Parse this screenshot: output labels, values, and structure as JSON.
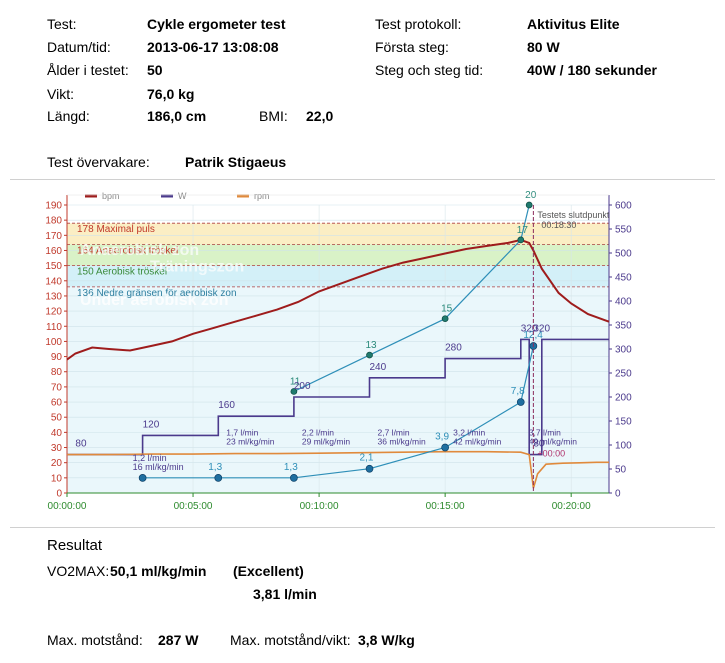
{
  "info": {
    "test_label": "Test:",
    "test_value": "Cykle ergometer test",
    "datum_label": "Datum/tid:",
    "datum_value": "2013-06-17  13:08:08",
    "alder_label": "Ålder i testet:",
    "alder_value": "50",
    "vikt_label": "Vikt:",
    "vikt_value": "76,0 kg",
    "langd_label": "Längd:",
    "langd_value": "186,0 cm",
    "bmi_label": "BMI:",
    "bmi_value": "22,0",
    "protokoll_label": "Test protokoll:",
    "protokoll_value": "Aktivitus Elite",
    "forsta_label": "Första steg:",
    "forsta_value": "80 W",
    "steg_label": "Steg och steg tid:",
    "steg_value": "40W / 180 sekunder",
    "overvakare_label": "Test övervakare:",
    "overvakare_value": "Patrik Stigaeus"
  },
  "chart_data": {
    "type": "line",
    "title": "",
    "legend": [
      "bpm",
      "W",
      "rpm"
    ],
    "legend_position": "top-left",
    "x_ticks": [
      "00:00:00",
      "00:05:00",
      "00:10:00",
      "00:15:00",
      "00:20:00"
    ],
    "x_range_seconds": [
      0,
      1290
    ],
    "y_left_range": [
      0,
      190
    ],
    "y_left_ticks": [
      0,
      10,
      20,
      30,
      40,
      50,
      60,
      70,
      80,
      90,
      100,
      110,
      120,
      130,
      140,
      150,
      160,
      170,
      180,
      190
    ],
    "y_right_range": [
      0,
      600
    ],
    "y_right_ticks": [
      0,
      50,
      100,
      150,
      200,
      250,
      300,
      350,
      400,
      450,
      500,
      550,
      600
    ],
    "zones": [
      {
        "label": "178 Maximal puls",
        "value": 178,
        "color": "#fbe6d8"
      },
      {
        "label": "164 Anaerobisk tröskel",
        "value": 164,
        "color": "#fbeec4"
      },
      {
        "label": "150 Aerobisk tröskel",
        "value": 150,
        "color": "#d9f2c7"
      },
      {
        "label": "136 Nedre gränsen för aerobisk zon",
        "value": 136,
        "color": "#d3f0f8"
      }
    ],
    "zone_names": [
      "Anaerobisk zon",
      "Träningszon",
      "Under aerobisk zon"
    ],
    "end_annotation": [
      "Testets slutdpunkt",
      "00:18:30"
    ],
    "end_time_seconds": 1110,
    "plus_label": "+00:00",
    "series": [
      {
        "name": "bpm",
        "axis": "left",
        "color": "#9e1c1c",
        "x": [
          0,
          20,
          60,
          100,
          150,
          200,
          250,
          300,
          350,
          400,
          450,
          500,
          550,
          600,
          650,
          700,
          750,
          800,
          850,
          900,
          950,
          1000,
          1050,
          1080,
          1100,
          1110,
          1130,
          1150,
          1170,
          1200,
          1240,
          1280,
          1290
        ],
        "y": [
          88,
          92,
          96,
          95,
          94,
          97,
          100,
          105,
          109,
          113,
          117,
          121,
          126,
          133,
          138,
          143,
          148,
          152,
          155,
          158,
          161,
          163,
          165,
          167,
          165,
          160,
          148,
          140,
          132,
          125,
          118,
          114,
          113
        ]
      },
      {
        "name": "W",
        "axis": "right",
        "color": "#4b3a8c",
        "x": [
          0,
          180,
          180,
          360,
          360,
          540,
          540,
          720,
          720,
          900,
          900,
          1080,
          1080,
          1100,
          1100,
          1130,
          1130,
          1290
        ],
        "y": [
          80,
          80,
          120,
          120,
          160,
          160,
          200,
          200,
          240,
          240,
          280,
          280,
          320,
          320,
          80,
          80,
          320,
          320
        ]
      },
      {
        "name": "rpm",
        "axis": "right",
        "color": "#e08a3c",
        "x": [
          0,
          100,
          200,
          300,
          400,
          500,
          600,
          700,
          800,
          900,
          1000,
          1080,
          1100,
          1110,
          1120,
          1140,
          1180,
          1220,
          1260,
          1290
        ],
        "y": [
          80,
          80,
          81,
          81,
          82,
          82,
          83,
          84,
          85,
          86,
          86,
          85,
          80,
          10,
          40,
          60,
          62,
          63,
          64,
          64
        ]
      }
    ],
    "vo2_series": {
      "name": "VO2 (ml/kg/min)",
      "color": "#2e8fb8",
      "points": [
        {
          "x": 180,
          "y": 10,
          "label": "1,2 l/min\n16 ml/kg/min"
        },
        {
          "x": 360,
          "y": 10,
          "label": "1,3"
        },
        {
          "x": 540,
          "y": 10,
          "label": "1,3"
        },
        {
          "x": 720,
          "y": 16,
          "label": "2,1"
        },
        {
          "x": 900,
          "y": 30,
          "label": "3,9"
        },
        {
          "x": 1080,
          "y": 60,
          "label": "7,8"
        },
        {
          "x": 1110,
          "y": 97,
          "label": "12,4"
        }
      ]
    },
    "hr_marker_series": {
      "name": "Markers (bpm)",
      "color": "#2e8fb8",
      "points": [
        {
          "x": 540,
          "y": 67,
          "label": "11"
        },
        {
          "x": 720,
          "y": 91,
          "label": "13"
        },
        {
          "x": 900,
          "y": 115,
          "label": "15"
        },
        {
          "x": 1080,
          "y": 167,
          "label": "17"
        },
        {
          "x": 1100,
          "y": 190,
          "label": "20"
        }
      ]
    },
    "step_labels": [
      {
        "x": 20,
        "w": 80,
        "text": "80"
      },
      {
        "x": 180,
        "w": 120,
        "text": "120"
      },
      {
        "x": 360,
        "w": 160,
        "text": "160"
      },
      {
        "x": 540,
        "w": 200,
        "text": "200"
      },
      {
        "x": 720,
        "w": 240,
        "text": "240"
      },
      {
        "x": 900,
        "w": 280,
        "text": "280"
      },
      {
        "x": 1080,
        "w": 320,
        "text": "320"
      },
      {
        "x": 1110,
        "w": 320,
        "text": "320"
      },
      {
        "x": 1110,
        "w": 80,
        "text": "80"
      }
    ],
    "step_o2_labels": [
      {
        "x": 360,
        "text": [
          "1,7 l/min",
          "23 ml/kg/min"
        ]
      },
      {
        "x": 540,
        "text": [
          "2,2 l/min",
          "29 ml/kg/min"
        ]
      },
      {
        "x": 720,
        "text": [
          "2,7 l/min",
          "36 ml/kg/min"
        ]
      },
      {
        "x": 900,
        "text": [
          "3,2 l/min",
          "42 ml/kg/min"
        ]
      },
      {
        "x": 1080,
        "text": [
          "3,7 l/min",
          "49 ml/kg/min"
        ]
      }
    ]
  },
  "results": {
    "heading": "Resultat",
    "vo2max_label": "VO2MAX:",
    "vo2max_value": "50,1 ml/kg/min",
    "rating": "(Excellent)",
    "lpm": "3,81 l/min",
    "max_label": "Max. motstånd:",
    "max_value": "287 W",
    "maxvikt_label": "Max. motstånd/vikt:",
    "maxvikt_value": "3,8 W/kg"
  }
}
